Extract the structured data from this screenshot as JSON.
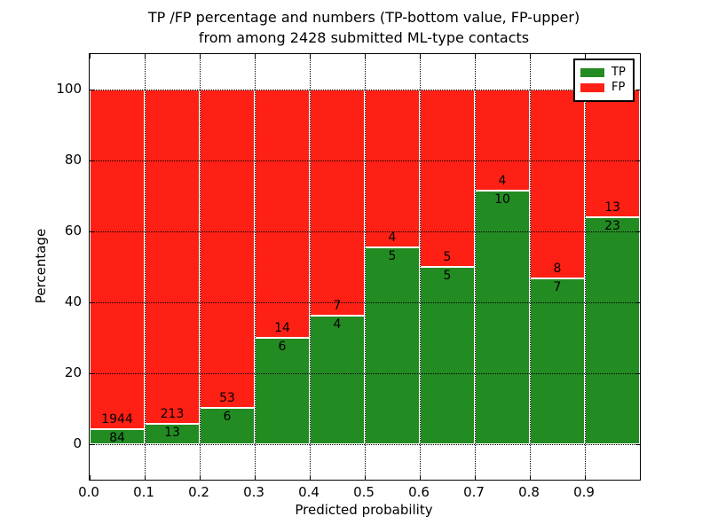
{
  "figure": {
    "title_line1": "TP /FP percentage and numbers (TP-bottom value, FP-upper)",
    "title_line2": "from among 2428 submitted ML-type contacts",
    "xlabel": "Predicted probability",
    "ylabel": "Percentage"
  },
  "legend": {
    "items": [
      {
        "label": "TP",
        "color": "#228B22"
      },
      {
        "label": "FP",
        "color": "#FF2015"
      }
    ]
  },
  "chart_data": {
    "type": "bar",
    "subtype": "stacked-percentage",
    "title": "TP /FP percentage and numbers (TP-bottom value, FP-upper) from among 2428 submitted ML-type contacts",
    "xlabel": "Predicted probability",
    "ylabel": "Percentage",
    "total_contacts": 2428,
    "bins": [
      "0.0-0.1",
      "0.1-0.2",
      "0.2-0.3",
      "0.3-0.4",
      "0.4-0.5",
      "0.5-0.6",
      "0.6-0.7",
      "0.7-0.8",
      "0.8-0.9",
      "0.9-1.0"
    ],
    "series": [
      {
        "name": "TP",
        "color": "#228B22",
        "counts": [
          84,
          13,
          6,
          6,
          4,
          5,
          5,
          10,
          7,
          23
        ]
      },
      {
        "name": "FP",
        "color": "#FF2015",
        "counts": [
          1944,
          213,
          53,
          14,
          7,
          4,
          5,
          4,
          8,
          13
        ]
      }
    ],
    "tp_percent": [
      4.1,
      5.8,
      10.2,
      30.0,
      36.4,
      55.6,
      50.0,
      71.4,
      46.7,
      63.9
    ],
    "xlim": [
      0.0,
      1.0
    ],
    "ylim": [
      -10,
      110
    ],
    "yticks": [
      0,
      20,
      40,
      60,
      80,
      100
    ],
    "ytick_labels": [
      "0",
      "20",
      "40",
      "60",
      "80",
      "100"
    ],
    "xtick_labels": [
      "0.0",
      "0.1",
      "0.2",
      "0.3",
      "0.4",
      "0.5",
      "0.6",
      "0.7",
      "0.8",
      "0.9"
    ],
    "grid": "dotted-both-axes-on-top",
    "bar_edge_color": "#FFFFFF",
    "legend_position": "upper right"
  }
}
